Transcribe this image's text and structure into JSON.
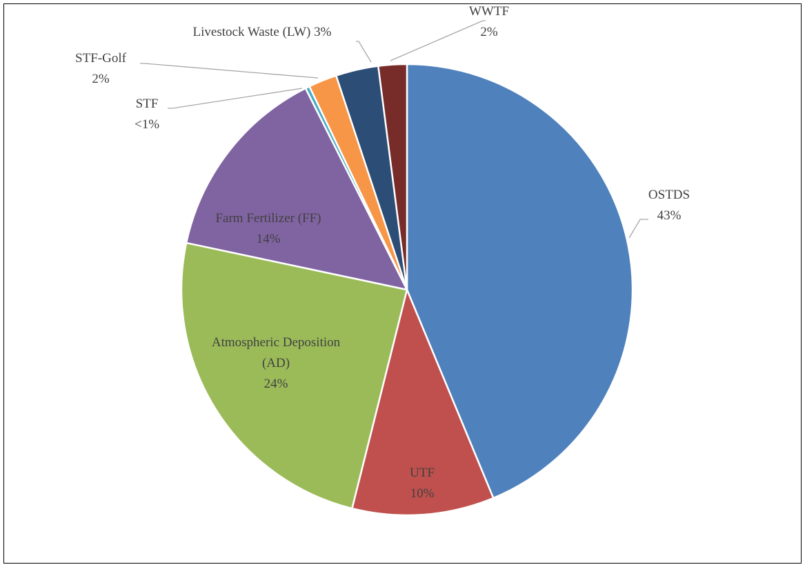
{
  "chart_data": {
    "type": "pie",
    "categories": [
      "OSTDS",
      "UTF",
      "Atmospheric Deposition (AD)",
      "Farm Fertilizer (FF)",
      "STF",
      "STF-Golf",
      "Livestock Waste (LW)",
      "WWTF"
    ],
    "values": [
      43,
      10,
      24,
      14,
      0.3,
      2,
      3,
      2
    ],
    "value_labels": [
      "43%",
      "10%",
      "24%",
      "14%",
      "<1%",
      "2%",
      "3%",
      "2%"
    ],
    "colors": [
      "#4f81bd",
      "#c0504d",
      "#9bbb59",
      "#8064a2",
      "#4bacc6",
      "#f79646",
      "#2c4d75",
      "#772c2a"
    ]
  }
}
